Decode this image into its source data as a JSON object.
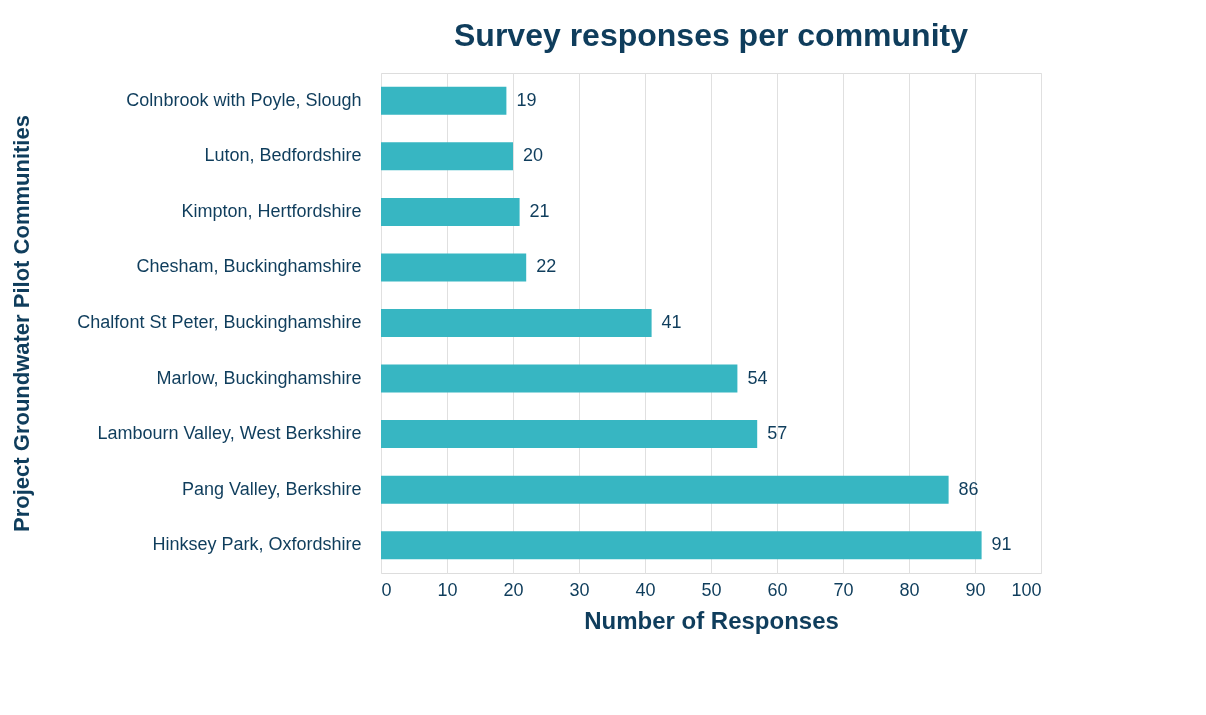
{
  "chart_data": {
    "type": "bar",
    "orientation": "horizontal",
    "title": "Survey responses per community",
    "xlabel": "Number of Responses",
    "ylabel": "Project Groundwater Pilot Communities",
    "categories": [
      "Colnbrook with Poyle, Slough",
      "Luton, Bedfordshire",
      "Kimpton, Hertfordshire",
      "Chesham, Buckinghamshire",
      "Chalfont St Peter, Buckinghamshire",
      "Marlow, Buckinghamshire",
      "Lambourn Valley, West Berkshire",
      "Pang Valley, Berkshire",
      "Hinksey Park, Oxfordshire"
    ],
    "values": [
      19,
      20,
      21,
      22,
      41,
      54,
      57,
      86,
      91
    ],
    "color": "#37b6c2",
    "xlim": [
      0,
      100
    ],
    "xticks": [
      0,
      10,
      20,
      30,
      40,
      50,
      60,
      70,
      80,
      90,
      100
    ],
    "grid": "x",
    "data_labels": true
  }
}
